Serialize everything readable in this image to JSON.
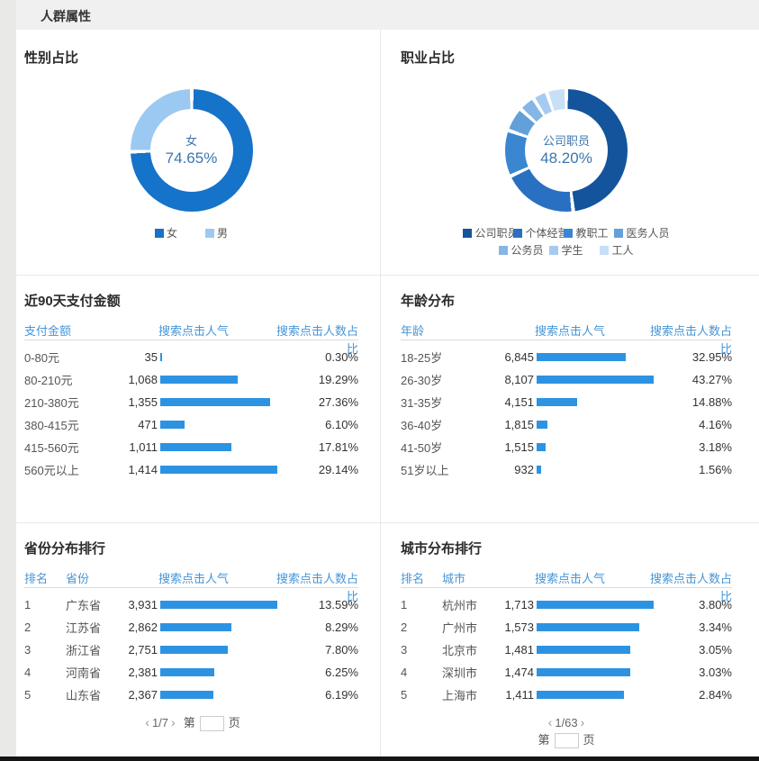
{
  "page": {
    "header_title": "人群属性"
  },
  "colors": {
    "bar": "#2c93e2",
    "table_header_text": "#4696d8",
    "donut_center_text": "#3b76ae",
    "band_bg": "#f0f0f0",
    "strip_bg": "#e9e9e7",
    "divider": "#e8e8e8",
    "bottom_bar": "#141414"
  },
  "chart_data": [
    {
      "type": "pie",
      "title": "性别占比",
      "labels": [
        "女",
        "男"
      ],
      "values": [
        74.65,
        25.35
      ],
      "colors": [
        "#1573c9",
        "#9cc9f2"
      ],
      "center_label": "女",
      "center_value": "74.65%",
      "legend_rows": [
        [
          "女",
          "男"
        ]
      ]
    },
    {
      "type": "pie",
      "title": "职业占比",
      "labels": [
        "公司职员",
        "个体经营",
        "教职工",
        "医务人员",
        "公务员",
        "学生",
        "工人"
      ],
      "values": [
        48.2,
        19.9,
        12.2,
        6.4,
        4.3,
        3.8,
        5.2
      ],
      "colors": [
        "#14549c",
        "#2a70c2",
        "#3a86d0",
        "#63a0da",
        "#84b6e6",
        "#a6cbf0",
        "#c7dff7"
      ],
      "center_label": "公司职员",
      "center_value": "48.20%",
      "legend_rows": [
        [
          "公司职员",
          "个体经营",
          "教职工",
          "医务人员"
        ],
        [
          "公务员",
          "学生",
          "工人"
        ]
      ]
    },
    {
      "type": "table",
      "title": "近90天支付金额",
      "first_headers": [
        "支付金额"
      ],
      "col_popularity": "搜索点击人气",
      "col_ratio": "搜索点击人数占比",
      "rows": [
        {
          "cells": [
            "0-80元"
          ],
          "popularity": "35",
          "ratio": "0.30%",
          "ratio_value": 0.3
        },
        {
          "cells": [
            "80-210元"
          ],
          "popularity": "1,068",
          "ratio": "19.29%",
          "ratio_value": 19.29
        },
        {
          "cells": [
            "210-380元"
          ],
          "popularity": "1,355",
          "ratio": "27.36%",
          "ratio_value": 27.36
        },
        {
          "cells": [
            "380-415元"
          ],
          "popularity": "471",
          "ratio": "6.10%",
          "ratio_value": 6.1
        },
        {
          "cells": [
            "415-560元"
          ],
          "popularity": "1,011",
          "ratio": "17.81%",
          "ratio_value": 17.81
        },
        {
          "cells": [
            "560元以上"
          ],
          "popularity": "1,414",
          "ratio": "29.14%",
          "ratio_value": 29.14
        }
      ],
      "pagination": null
    },
    {
      "type": "table",
      "title": "年龄分布",
      "first_headers": [
        "年龄"
      ],
      "col_popularity": "搜索点击人气",
      "col_ratio": "搜索点击人数占比",
      "rows": [
        {
          "cells": [
            "18-25岁"
          ],
          "popularity": "6,845",
          "ratio": "32.95%",
          "ratio_value": 32.95
        },
        {
          "cells": [
            "26-30岁"
          ],
          "popularity": "8,107",
          "ratio": "43.27%",
          "ratio_value": 43.27
        },
        {
          "cells": [
            "31-35岁"
          ],
          "popularity": "4,151",
          "ratio": "14.88%",
          "ratio_value": 14.88
        },
        {
          "cells": [
            "36-40岁"
          ],
          "popularity": "1,815",
          "ratio": "4.16%",
          "ratio_value": 4.16
        },
        {
          "cells": [
            "41-50岁"
          ],
          "popularity": "1,515",
          "ratio": "3.18%",
          "ratio_value": 3.18
        },
        {
          "cells": [
            "51岁以上"
          ],
          "popularity": "932",
          "ratio": "1.56%",
          "ratio_value": 1.56
        }
      ],
      "pagination": null
    },
    {
      "type": "table",
      "title": "省份分布排行",
      "first_headers": [
        "排名",
        "省份"
      ],
      "col_popularity": "搜索点击人气",
      "col_ratio": "搜索点击人数占比",
      "rows": [
        {
          "cells": [
            "1",
            "广东省"
          ],
          "popularity": "3,931",
          "ratio": "13.59%",
          "ratio_value": 13.59
        },
        {
          "cells": [
            "2",
            "江苏省"
          ],
          "popularity": "2,862",
          "ratio": "8.29%",
          "ratio_value": 8.29
        },
        {
          "cells": [
            "3",
            "浙江省"
          ],
          "popularity": "2,751",
          "ratio": "7.80%",
          "ratio_value": 7.8
        },
        {
          "cells": [
            "4",
            "河南省"
          ],
          "popularity": "2,381",
          "ratio": "6.25%",
          "ratio_value": 6.25
        },
        {
          "cells": [
            "5",
            "山东省"
          ],
          "popularity": "2,367",
          "ratio": "6.19%",
          "ratio_value": 6.19
        }
      ],
      "pagination": {
        "layout": "inline",
        "prev": "‹",
        "indicator": "1/7",
        "next": "›",
        "jump_prefix": "第",
        "jump_suffix": "页",
        "input_value": ""
      }
    },
    {
      "type": "table",
      "title": "城市分布排行",
      "first_headers": [
        "排名",
        "城市"
      ],
      "col_popularity": "搜索点击人气",
      "col_ratio": "搜索点击人数占比",
      "rows": [
        {
          "cells": [
            "1",
            "杭州市"
          ],
          "popularity": "1,713",
          "ratio": "3.80%",
          "ratio_value": 3.8
        },
        {
          "cells": [
            "2",
            "广州市"
          ],
          "popularity": "1,573",
          "ratio": "3.34%",
          "ratio_value": 3.34
        },
        {
          "cells": [
            "3",
            "北京市"
          ],
          "popularity": "1,481",
          "ratio": "3.05%",
          "ratio_value": 3.05
        },
        {
          "cells": [
            "4",
            "深圳市"
          ],
          "popularity": "1,474",
          "ratio": "3.03%",
          "ratio_value": 3.03
        },
        {
          "cells": [
            "5",
            "上海市"
          ],
          "popularity": "1,411",
          "ratio": "2.84%",
          "ratio_value": 2.84
        }
      ],
      "pagination": {
        "layout": "stacked",
        "prev": "‹",
        "indicator": "1/63",
        "next": "›",
        "jump_prefix": "第",
        "jump_suffix": "页",
        "input_value": ""
      }
    }
  ]
}
